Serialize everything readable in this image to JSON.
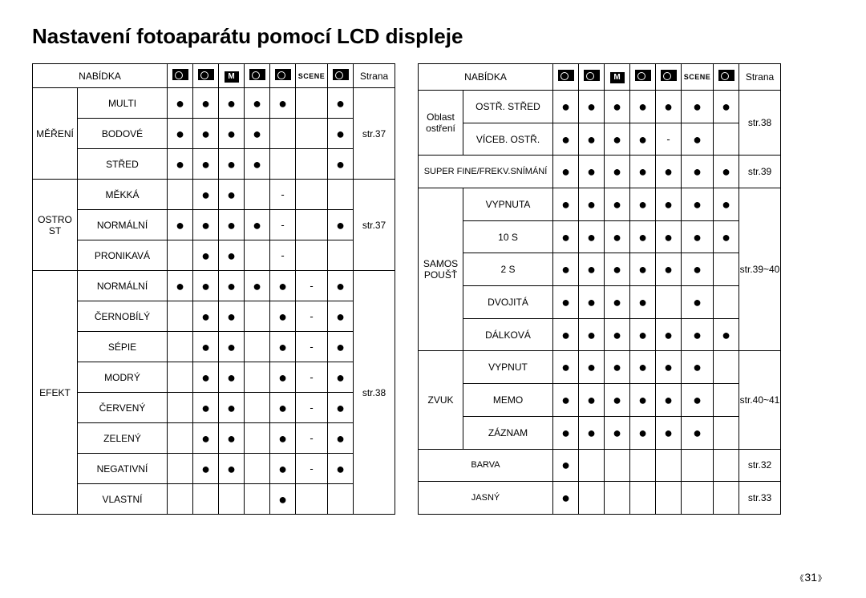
{
  "title": "Nastavení fotoaparátu pomocí LCD displeje",
  "pageNumber": "31",
  "headers": {
    "nabidka": "NABÍDKA",
    "strana": "Strana",
    "scene": "SCENE",
    "modeLetters": [
      "",
      "",
      "M",
      "",
      "",
      "SCENE",
      ""
    ]
  },
  "table1": {
    "groups": [
      {
        "cat": "MĚŘENÍ",
        "page": "str.37",
        "rows": [
          {
            "label": "MULTI",
            "marks": [
              "●",
              "●",
              "●",
              "●",
              "●",
              "",
              "●"
            ]
          },
          {
            "label": "BODOVÉ",
            "marks": [
              "●",
              "●",
              "●",
              "●",
              "",
              "",
              "●"
            ]
          },
          {
            "label": "STŘED",
            "marks": [
              "●",
              "●",
              "●",
              "●",
              "",
              "",
              "●"
            ]
          }
        ]
      },
      {
        "cat": "OSTRO ST",
        "page": "str.37",
        "rows": [
          {
            "label": "MĚKKÁ",
            "marks": [
              "",
              "●",
              "●",
              "",
              "-",
              "",
              ""
            ]
          },
          {
            "label": "NORMÁLNÍ",
            "marks": [
              "●",
              "●",
              "●",
              "●",
              "-",
              "",
              "●"
            ]
          },
          {
            "label": "PRONIKAVÁ",
            "marks": [
              "",
              "●",
              "●",
              "",
              "-",
              "",
              ""
            ]
          }
        ]
      },
      {
        "cat": "EFEKT",
        "page": "str.38",
        "rows": [
          {
            "label": "NORMÁLNÍ",
            "marks": [
              "●",
              "●",
              "●",
              "●",
              "●",
              "-",
              "●"
            ]
          },
          {
            "label": "ČERNOBÍLÝ",
            "marks": [
              "",
              "●",
              "●",
              "",
              "●",
              "-",
              "●"
            ]
          },
          {
            "label": "SÉPIE",
            "marks": [
              "",
              "●",
              "●",
              "",
              "●",
              "-",
              "●"
            ]
          },
          {
            "label": "MODRÝ",
            "marks": [
              "",
              "●",
              "●",
              "",
              "●",
              "-",
              "●"
            ]
          },
          {
            "label": "ČERVENÝ",
            "marks": [
              "",
              "●",
              "●",
              "",
              "●",
              "-",
              "●"
            ]
          },
          {
            "label": "ZELENÝ",
            "marks": [
              "",
              "●",
              "●",
              "",
              "●",
              "-",
              "●"
            ]
          },
          {
            "label": "NEGATIVNÍ",
            "marks": [
              "",
              "●",
              "●",
              "",
              "●",
              "-",
              "●"
            ]
          },
          {
            "label": "VLASTNÍ",
            "marks": [
              "",
              "",
              "",
              "",
              "●",
              "",
              ""
            ]
          }
        ]
      }
    ]
  },
  "table2": {
    "groups": [
      {
        "cat": "Oblast ostření",
        "page": "str.38",
        "rows": [
          {
            "label": "OSTŘ. STŘED",
            "marks": [
              "●",
              "●",
              "●",
              "●",
              "●",
              "●",
              "●"
            ]
          },
          {
            "label": "VÍCEB. OSTŘ.",
            "marks": [
              "●",
              "●",
              "●",
              "●",
              "-",
              "●",
              ""
            ]
          }
        ]
      },
      {
        "cat": "",
        "catLabel": "SUPER FINE/FREKV.SNÍMÁNÍ",
        "fullCat": true,
        "page": "str.39",
        "rows": [
          {
            "label": "",
            "marks": [
              "●",
              "●",
              "●",
              "●",
              "●",
              "●",
              "●"
            ]
          }
        ]
      },
      {
        "cat": "SAMOS POUŠŤ",
        "page": "str.39~40",
        "rows": [
          {
            "label": "VYPNUTA",
            "marks": [
              "●",
              "●",
              "●",
              "●",
              "●",
              "●",
              "●"
            ]
          },
          {
            "label": "10 S",
            "marks": [
              "●",
              "●",
              "●",
              "●",
              "●",
              "●",
              "●"
            ]
          },
          {
            "label": "2 S",
            "marks": [
              "●",
              "●",
              "●",
              "●",
              "●",
              "●",
              ""
            ]
          },
          {
            "label": "DVOJITÁ",
            "marks": [
              "●",
              "●",
              "●",
              "●",
              "",
              "●",
              ""
            ]
          },
          {
            "label": "DÁLKOVÁ",
            "marks": [
              "●",
              "●",
              "●",
              "●",
              "●",
              "●",
              "●"
            ]
          }
        ]
      },
      {
        "cat": "ZVUK",
        "page": "str.40~41",
        "rows": [
          {
            "label": "VYPNUT",
            "marks": [
              "●",
              "●",
              "●",
              "●",
              "●",
              "●",
              ""
            ]
          },
          {
            "label": "MEMO",
            "marks": [
              "●",
              "●",
              "●",
              "●",
              "●",
              "●",
              ""
            ]
          },
          {
            "label": "ZÁZNAM",
            "marks": [
              "●",
              "●",
              "●",
              "●",
              "●",
              "●",
              ""
            ]
          }
        ]
      },
      {
        "cat": "",
        "catLabel": "BARVA",
        "fullCat": true,
        "page": "str.32",
        "rows": [
          {
            "label": "",
            "marks": [
              "●",
              "",
              "",
              "",
              "",
              "",
              ""
            ]
          }
        ]
      },
      {
        "cat": "",
        "catLabel": "JASNÝ",
        "fullCat": true,
        "page": "str.33",
        "rows": [
          {
            "label": "",
            "marks": [
              "●",
              "",
              "",
              "",
              "",
              "",
              ""
            ]
          }
        ]
      }
    ]
  }
}
